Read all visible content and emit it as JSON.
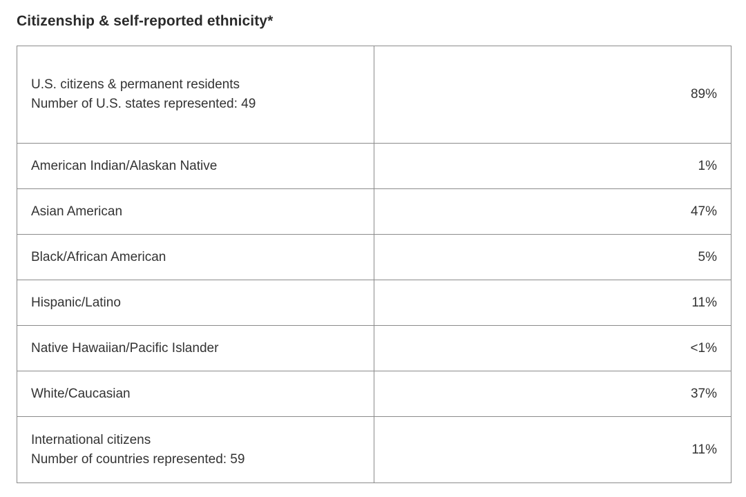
{
  "section": {
    "title": "Citizenship & self-reported ethnicity*"
  },
  "table": {
    "rows": [
      {
        "label": "U.S. citizens & permanent residents",
        "sublabel": "Number of U.S. states represented: 49",
        "value": "89%"
      },
      {
        "label": "American Indian/Alaskan Native",
        "value": "1%"
      },
      {
        "label": "Asian American",
        "value": "47%"
      },
      {
        "label": "Black/African American",
        "value": "5%"
      },
      {
        "label": "Hispanic/Latino",
        "value": "11%"
      },
      {
        "label": "Native Hawaiian/Pacific Islander",
        "value": "<1%"
      },
      {
        "label": "White/Caucasian",
        "value": "37%"
      },
      {
        "label": "International citizens",
        "sublabel": "Number of countries represented: 59",
        "value": "11%"
      }
    ]
  }
}
